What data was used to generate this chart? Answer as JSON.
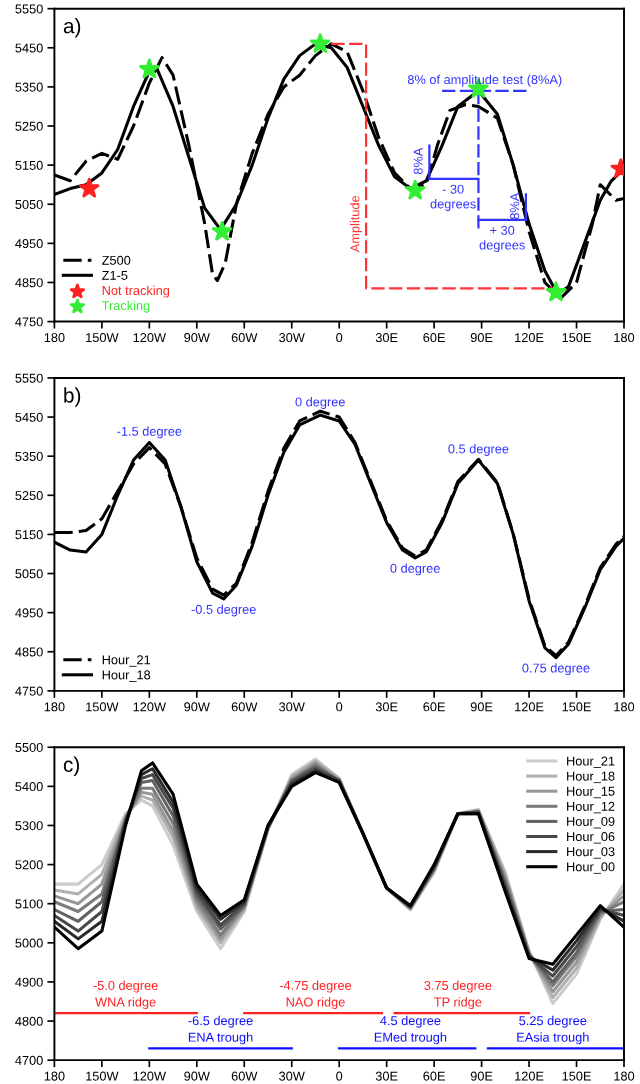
{
  "chart_data": [
    {
      "type": "line",
      "annotations": [
        "a)",
        {
          "text": "8% of amplitude test (8%A)",
          "x": 92,
          "y": 5340
        },
        {
          "text": "- 30\ndegrees",
          "x": 72,
          "y": 5115
        },
        {
          "text": "+ 30\ndegrees",
          "x": 103,
          "y": 5010
        },
        {
          "text": "8%A",
          "x": 57,
          "y": 5160
        },
        {
          "text": "8%A",
          "x": 118,
          "y": 5045
        },
        {
          "text": "Amplitude",
          "x": 17,
          "y": 5000
        }
      ],
      "xlim": [
        -180,
        180
      ],
      "xticks": [
        {
          "value": -180,
          "label": "180"
        },
        {
          "value": -150,
          "label": "150W"
        },
        {
          "value": -120,
          "label": "120W"
        },
        {
          "value": -90,
          "label": "90W"
        },
        {
          "value": -60,
          "label": "60W"
        },
        {
          "value": -30,
          "label": "30W"
        },
        0,
        {
          "value": 30,
          "label": "30E"
        },
        {
          "value": 60,
          "label": "60E"
        },
        {
          "value": 90,
          "label": "90E"
        },
        {
          "value": 120,
          "label": "120E"
        },
        {
          "value": 150,
          "label": "150E"
        },
        {
          "value": 180,
          "label": "180"
        }
      ],
      "ylim": [
        4750,
        5550
      ],
      "yticks": [
        4750,
        4850,
        4950,
        5050,
        5150,
        5250,
        5350,
        5450,
        5550
      ],
      "legend": "bottom left",
      "series": [
        {
          "name": "Z500",
          "color": "#000000",
          "line_style": "dashed",
          "x": [
            -180,
            -170,
            -160,
            -150,
            -140,
            -130,
            -120,
            -112,
            -105,
            -95,
            -85,
            -80,
            -77,
            -72,
            -65,
            -55,
            -45,
            -35,
            -25,
            -15,
            -5,
            5,
            15,
            25,
            35,
            45,
            55,
            62,
            70,
            80,
            88,
            100,
            110,
            120,
            130,
            140,
            150,
            160,
            165,
            170,
            175,
            180
          ],
          "values": [
            5125,
            5110,
            5160,
            5180,
            5165,
            5250,
            5360,
            5425,
            5380,
            5200,
            5000,
            4870,
            4855,
            4900,
            5050,
            5180,
            5280,
            5350,
            5380,
            5430,
            5460,
            5440,
            5340,
            5220,
            5130,
            5090,
            5100,
            5200,
            5290,
            5305,
            5300,
            5270,
            5150,
            4980,
            4850,
            4810,
            4850,
            5000,
            5100,
            5080,
            5060,
            5065
          ]
        },
        {
          "name": "Z1-5",
          "color": "#000000",
          "line_style": "solid",
          "x": [
            -180,
            -170,
            -160,
            -150,
            -140,
            -130,
            -120,
            -115,
            -105,
            -95,
            -85,
            -75,
            -65,
            -55,
            -45,
            -35,
            -25,
            -15,
            -5,
            5,
            15,
            25,
            35,
            45,
            55,
            65,
            75,
            88,
            100,
            110,
            120,
            130,
            138,
            145,
            155,
            165,
            172,
            180
          ],
          "values": [
            5075,
            5090,
            5100,
            5130,
            5190,
            5300,
            5390,
            5395,
            5300,
            5170,
            5040,
            4985,
            5050,
            5150,
            5270,
            5370,
            5430,
            5460,
            5450,
            5400,
            5300,
            5200,
            5120,
            5090,
            5110,
            5200,
            5300,
            5340,
            5280,
            5150,
            5000,
            4880,
            4820,
            4840,
            4950,
            5060,
            5110,
            5140
          ]
        },
        {
          "color": "#ff3333",
          "line_style": "dashed",
          "x": [
            -5,
            17,
            17,
            138
          ],
          "values": [
            5460,
            5460,
            4835,
            4835
          ]
        },
        {
          "color": "#3333ff",
          "line_style": "dashed",
          "x": [
            65,
            120
          ],
          "values": [
            5340,
            5340
          ]
        },
        {
          "color": "#3333ff",
          "line_style": "dashed",
          "x": [
            88,
            88
          ],
          "values": [
            5340,
            4985
          ]
        },
        {
          "color": "#3333ff",
          "line_style": "solid",
          "x": [
            57,
            88
          ],
          "values": [
            5115,
            5115
          ]
        },
        {
          "color": "#3333ff",
          "line_style": "solid",
          "x": [
            57,
            57
          ],
          "values": [
            5115,
            5200
          ]
        },
        {
          "color": "#3333ff",
          "line_style": "solid",
          "x": [
            88,
            118
          ],
          "values": [
            5010,
            5010
          ]
        },
        {
          "color": "#3333ff",
          "line_style": "solid",
          "x": [
            118,
            118
          ],
          "values": [
            5010,
            5075
          ]
        },
        {
          "name": "Not tracking",
          "type": "scatter",
          "marker": "star",
          "color": "#ff2020",
          "x": [
            -158,
            178
          ],
          "values": [
            5090,
            5140
          ]
        },
        {
          "name": "Tracking",
          "type": "scatter",
          "marker": "star",
          "color": "#33ee33",
          "x": [
            -120,
            -74,
            -12,
            48,
            88,
            137
          ],
          "values": [
            5395,
            4980,
            5460,
            5085,
            5345,
            4825
          ]
        }
      ]
    },
    {
      "type": "line",
      "annotations": [
        "b)",
        {
          "text": "-1.5 degree",
          "x": -120,
          "y": 5385
        },
        {
          "text": "0 degree",
          "x": -12,
          "y": 5460
        },
        {
          "text": "0.5 degree",
          "x": 88,
          "y": 5340
        },
        {
          "text": "0 degree",
          "x": 48,
          "y": 5090
        },
        {
          "text": "-0.5 degree",
          "x": -73,
          "y": 4985
        },
        {
          "text": "0.75 degree",
          "x": 137,
          "y": 4835
        }
      ],
      "xlim": [
        -180,
        180
      ],
      "xticks": [
        {
          "value": -180,
          "label": "180"
        },
        {
          "value": -150,
          "label": "150W"
        },
        {
          "value": -120,
          "label": "120W"
        },
        {
          "value": -90,
          "label": "90W"
        },
        {
          "value": -60,
          "label": "60W"
        },
        {
          "value": -30,
          "label": "30W"
        },
        0,
        {
          "value": 30,
          "label": "30E"
        },
        {
          "value": 60,
          "label": "60E"
        },
        {
          "value": 90,
          "label": "90E"
        },
        {
          "value": 120,
          "label": "120E"
        },
        {
          "value": 150,
          "label": "150E"
        },
        {
          "value": 180,
          "label": "180"
        }
      ],
      "ylim": [
        4750,
        5550
      ],
      "yticks": [
        4750,
        4850,
        4950,
        5050,
        5150,
        5250,
        5350,
        5450,
        5550
      ],
      "legend": "bottom left",
      "series": [
        {
          "name": "Hour_21",
          "color": "#000000",
          "line_style": "dashed",
          "x": [
            -180,
            -170,
            -160,
            -150,
            -140,
            -130,
            -120,
            -110,
            -100,
            -90,
            -80,
            -73,
            -65,
            -55,
            -45,
            -35,
            -25,
            -12,
            0,
            10,
            20,
            30,
            40,
            48,
            55,
            65,
            75,
            88,
            100,
            110,
            120,
            130,
            137,
            145,
            155,
            165,
            175,
            180
          ],
          "values": [
            5155,
            5155,
            5160,
            5190,
            5260,
            5330,
            5372,
            5330,
            5220,
            5090,
            5010,
            4995,
            5025,
            5130,
            5260,
            5370,
            5440,
            5465,
            5450,
            5385,
            5285,
            5185,
            5115,
            5095,
            5110,
            5185,
            5285,
            5342,
            5282,
            5152,
            4985,
            4865,
            4840,
            4875,
            4965,
            5065,
            5125,
            5145
          ]
        },
        {
          "name": "Hour_18",
          "color": "#000000",
          "line_style": "solid",
          "x": [
            -180,
            -170,
            -160,
            -150,
            -140,
            -130,
            -120,
            -110,
            -100,
            -90,
            -80,
            -73,
            -65,
            -55,
            -45,
            -35,
            -25,
            -12,
            0,
            10,
            20,
            30,
            40,
            48,
            55,
            65,
            75,
            88,
            100,
            110,
            120,
            130,
            137,
            145,
            155,
            165,
            175,
            180
          ],
          "values": [
            5130,
            5110,
            5105,
            5150,
            5250,
            5340,
            5385,
            5340,
            5220,
            5080,
            5000,
            4985,
            5020,
            5120,
            5250,
            5360,
            5430,
            5455,
            5440,
            5380,
            5280,
            5180,
            5110,
            5090,
            5105,
            5180,
            5280,
            5340,
            5280,
            5150,
            4980,
            4860,
            4835,
            4870,
            4960,
            5060,
            5120,
            5140
          ]
        }
      ]
    },
    {
      "type": "line",
      "annotations": [
        "c)",
        {
          "text": "-5.0 degree\nWNA ridge",
          "x": -135,
          "y": 4820
        },
        {
          "text": "-4.75 degree\nNAO ridge",
          "x": -15,
          "y": 4820
        },
        {
          "text": "3.75 degree\nTP ridge",
          "x": 75,
          "y": 4820
        },
        {
          "text": "-6.5 degree\nENA trough",
          "x": -75,
          "y": 4730
        },
        {
          "text": "4.5 degree\nEMed trough",
          "x": 45,
          "y": 4730
        },
        {
          "text": "5.25 degree\nEAsia trough",
          "x": 135,
          "y": 4730
        }
      ],
      "xlim": [
        -180,
        180
      ],
      "xticks": [
        {
          "value": -180,
          "label": "180"
        },
        {
          "value": -150,
          "label": "150W"
        },
        {
          "value": -120,
          "label": "120W"
        },
        {
          "value": -90,
          "label": "90W"
        },
        {
          "value": -60,
          "label": "60W"
        },
        {
          "value": -30,
          "label": "30W"
        },
        0,
        {
          "value": 30,
          "label": "30E"
        },
        {
          "value": 60,
          "label": "60E"
        },
        {
          "value": 90,
          "label": "90E"
        },
        {
          "value": 120,
          "label": "120E"
        },
        {
          "value": 150,
          "label": "150E"
        },
        {
          "value": 180,
          "label": "180"
        }
      ],
      "ylim": [
        4700,
        5500
      ],
      "yticks": [
        4700,
        4800,
        4900,
        5000,
        5100,
        5200,
        5300,
        5400,
        5500
      ],
      "legend": "top right",
      "x": [
        -180,
        -165,
        -150,
        -135,
        -125,
        -118,
        -105,
        -90,
        -75,
        -60,
        -45,
        -30,
        -15,
        0,
        15,
        30,
        45,
        60,
        75,
        88,
        105,
        120,
        135,
        150,
        165,
        180
      ],
      "series": [
        {
          "name": "Hour_21",
          "color": "#cccccc",
          "values": [
            5150,
            5150,
            5200,
            5330,
            5365,
            5350,
            5250,
            5080,
            4985,
            5080,
            5290,
            5430,
            5470,
            5420,
            5280,
            5140,
            5085,
            5180,
            5330,
            5340,
            5180,
            4980,
            4845,
            4920,
            5060,
            5150
          ]
        },
        {
          "name": "Hour_18",
          "color": "#b0b0b0",
          "values": [
            5135,
            5125,
            5175,
            5325,
            5375,
            5365,
            5270,
            5090,
            5000,
            5085,
            5290,
            5425,
            5465,
            5420,
            5280,
            5140,
            5085,
            5185,
            5330,
            5340,
            5175,
            4975,
            4860,
            4935,
            5065,
            5135
          ]
        },
        {
          "name": "Hour_15",
          "color": "#969696",
          "values": [
            5120,
            5100,
            5150,
            5320,
            5385,
            5380,
            5285,
            5100,
            5010,
            5090,
            5295,
            5420,
            5460,
            5415,
            5280,
            5140,
            5090,
            5185,
            5330,
            5335,
            5165,
            4975,
            4875,
            4950,
            5070,
            5120
          ]
        },
        {
          "name": "Hour_12",
          "color": "#7c7c7c",
          "values": [
            5105,
            5080,
            5125,
            5315,
            5395,
            5395,
            5305,
            5110,
            5020,
            5095,
            5295,
            5415,
            5455,
            5415,
            5280,
            5140,
            5090,
            5190,
            5330,
            5335,
            5160,
            4970,
            4890,
            4965,
            5075,
            5105
          ]
        },
        {
          "name": "Hour_09",
          "color": "#626262",
          "values": [
            5085,
            5055,
            5105,
            5315,
            5410,
            5415,
            5325,
            5120,
            5035,
            5095,
            5295,
            5415,
            5450,
            5415,
            5280,
            5140,
            5090,
            5190,
            5330,
            5335,
            5150,
            4970,
            4900,
            4975,
            5080,
            5085
          ]
        },
        {
          "name": "Hour_06",
          "color": "#484848",
          "values": [
            5070,
            5030,
            5080,
            5310,
            5420,
            5430,
            5345,
            5130,
            5045,
            5100,
            5295,
            5410,
            5445,
            5415,
            5280,
            5140,
            5090,
            5195,
            5330,
            5335,
            5145,
            4965,
            4915,
            4990,
            5085,
            5070
          ]
        },
        {
          "name": "Hour_03",
          "color": "#2a2a2a",
          "values": [
            5055,
            5010,
            5055,
            5305,
            5430,
            5445,
            5360,
            5140,
            5060,
            5105,
            5300,
            5405,
            5440,
            5410,
            5280,
            5140,
            5095,
            5195,
            5330,
            5330,
            5135,
            4965,
            4930,
            5005,
            5090,
            5055
          ]
        },
        {
          "name": "Hour_00",
          "color": "#000000",
          "values": [
            5040,
            4985,
            5030,
            5300,
            5440,
            5460,
            5380,
            5150,
            5070,
            5110,
            5300,
            5400,
            5435,
            5410,
            5280,
            5140,
            5095,
            5200,
            5330,
            5330,
            5130,
            4960,
            4945,
            5020,
            5095,
            5040
          ]
        },
        {
          "color": "#ff2020",
          "x": [
            -180,
            -90
          ],
          "values": [
            4820,
            4820
          ]
        },
        {
          "color": "#ff2020",
          "x": [
            -60,
            27
          ],
          "values": [
            4820,
            4820
          ]
        },
        {
          "color": "#ff2020",
          "x": [
            35,
            120
          ],
          "values": [
            4820,
            4820
          ]
        },
        {
          "color": "#1010ff",
          "x": [
            -120,
            -30
          ],
          "values": [
            4730,
            4730
          ]
        },
        {
          "color": "#1010ff",
          "x": [
            0,
            86
          ],
          "values": [
            4730,
            4730
          ]
        },
        {
          "color": "#1010ff",
          "x": [
            94,
            180
          ],
          "values": [
            4730,
            4730
          ]
        }
      ]
    }
  ]
}
